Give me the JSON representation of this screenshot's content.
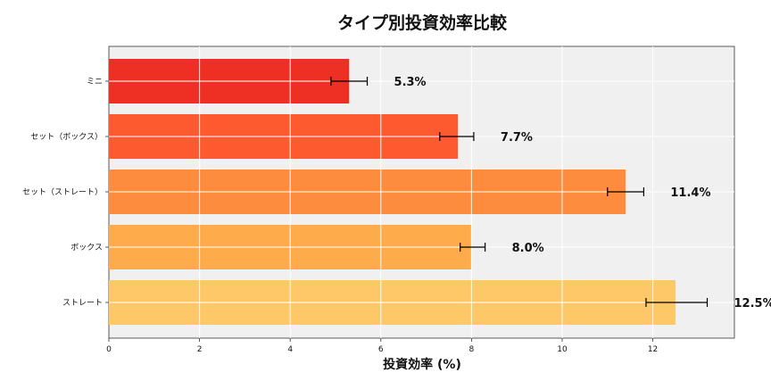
{
  "chart_data": {
    "type": "bar",
    "orientation": "horizontal",
    "title": "タイプ別投資効率比較",
    "xlabel": "投資効率 (%)",
    "ylabel": "",
    "categories": [
      "ミニ",
      "セット（ボックス）",
      "セット（ストレート）",
      "ボックス",
      "ストレート"
    ],
    "values": [
      5.3,
      7.7,
      11.4,
      8.0,
      12.5
    ],
    "error_low": [
      4.9,
      7.3,
      11.0,
      7.75,
      11.85
    ],
    "error_high": [
      5.7,
      8.05,
      11.8,
      8.3,
      13.2
    ],
    "value_labels": [
      "5.3%",
      "7.7%",
      "11.4%",
      "8.0%",
      "12.5%"
    ],
    "bar_colors": [
      "#ee2f23",
      "#fe5a30",
      "#fe8c3e",
      "#feab4c",
      "#fec868"
    ],
    "xlim": [
      0,
      13.8
    ],
    "xticks": [
      0,
      2,
      4,
      6,
      8,
      10,
      12
    ],
    "xtick_labels": [
      "0",
      "2",
      "4",
      "6",
      "8",
      "10",
      "12"
    ],
    "grid": true,
    "plot_background": "#f0f0f0"
  }
}
